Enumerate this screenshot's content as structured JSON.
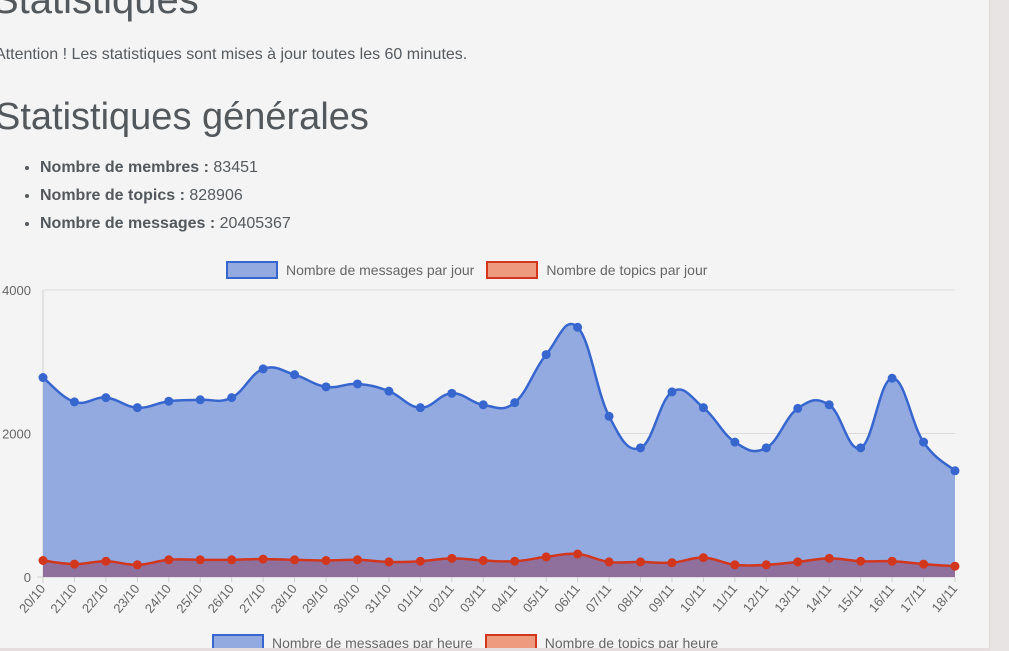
{
  "page": {
    "title": "Statistiques",
    "notice": "Attention ! Les statistiques sont mises à jour toutes les 60 minutes.",
    "section_title": "Statistiques générales"
  },
  "stats": [
    {
      "label": "Nombre de membres :",
      "value": "83451"
    },
    {
      "label": "Nombre de topics :",
      "value": "828906"
    },
    {
      "label": "Nombre de messages :",
      "value": "20405367"
    }
  ],
  "legend_top": {
    "messages": "Nombre de messages par jour",
    "topics": "Nombre de topics par jour"
  },
  "legend_bottom": {
    "messages": "Nombre de messages par heure",
    "topics": "Nombre de topics par heure"
  },
  "colors": {
    "messages_fill": "#93aae1",
    "messages_line": "#3766cf",
    "topics_fill": "#8f6f9c",
    "topics_line": "#d2361d"
  },
  "chart_data": {
    "type": "area",
    "categories": [
      "20/10",
      "21/10",
      "22/10",
      "23/10",
      "24/10",
      "25/10",
      "26/10",
      "27/10",
      "28/10",
      "29/10",
      "30/10",
      "31/10",
      "01/11",
      "02/11",
      "03/11",
      "04/11",
      "05/11",
      "06/11",
      "07/11",
      "08/11",
      "09/11",
      "10/11",
      "11/11",
      "12/11",
      "13/11",
      "14/11",
      "15/11",
      "16/11",
      "17/11",
      "18/11"
    ],
    "y_ticks": [
      "0",
      "2000",
      "4000"
    ],
    "ylim": [
      0,
      4000
    ],
    "grid": true,
    "legend": "top",
    "series": [
      {
        "name": "Nombre de messages par jour",
        "values": [
          2780,
          2440,
          2500,
          2360,
          2450,
          2470,
          2500,
          2900,
          2820,
          2650,
          2690,
          2590,
          2360,
          2560,
          2400,
          2430,
          3100,
          3480,
          2240,
          1800,
          2580,
          2360,
          1880,
          1800,
          2350,
          2400,
          1800,
          2770,
          1880,
          1480
        ]
      },
      {
        "name": "Nombre de topics par jour",
        "values": [
          230,
          180,
          220,
          170,
          240,
          240,
          240,
          250,
          240,
          230,
          240,
          210,
          220,
          260,
          230,
          220,
          280,
          320,
          210,
          210,
          200,
          270,
          170,
          170,
          210,
          260,
          220,
          220,
          180,
          150
        ]
      }
    ]
  }
}
